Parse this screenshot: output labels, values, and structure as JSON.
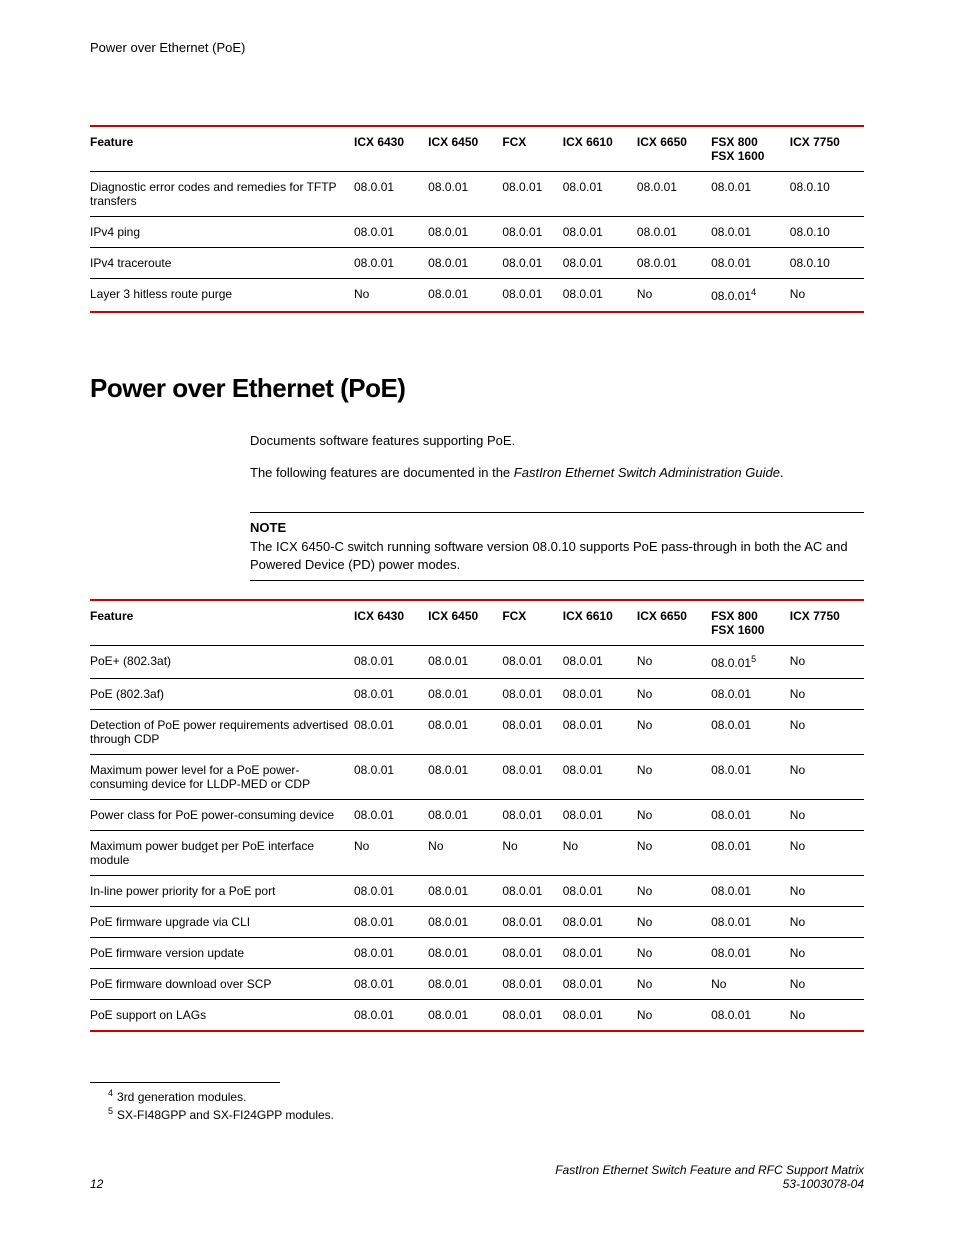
{
  "header": {
    "title": "Power over Ethernet (PoE)"
  },
  "columns": [
    "Feature",
    "ICX 6430",
    "ICX 6450",
    "FCX",
    "ICX 6610",
    "ICX 6650",
    "FSX 800",
    "ICX 7750"
  ],
  "columns_sub": [
    "",
    "",
    "",
    "",
    "",
    "",
    "FSX 1600",
    ""
  ],
  "table1": {
    "rows": [
      [
        "Diagnostic error codes and remedies for TFTP transfers",
        "08.0.01",
        "08.0.01",
        "08.0.01",
        "08.0.01",
        "08.0.01",
        "08.0.01",
        "08.0.10"
      ],
      [
        "IPv4 ping",
        "08.0.01",
        "08.0.01",
        "08.0.01",
        "08.0.01",
        "08.0.01",
        "08.0.01",
        "08.0.10"
      ],
      [
        "IPv4 traceroute",
        "08.0.01",
        "08.0.01",
        "08.0.01",
        "08.0.01",
        "08.0.01",
        "08.0.01",
        "08.0.10"
      ],
      [
        "Layer 3 hitless route purge",
        "No",
        "08.0.01",
        "08.0.01",
        "08.0.01",
        "No",
        "08.0.01",
        "No"
      ]
    ],
    "fn_cell": {
      "row": 3,
      "col": 6,
      "sup": "4"
    }
  },
  "section_heading": "Power over Ethernet (PoE)",
  "para1": "Documents software features supporting PoE.",
  "para2_pre": "The following features are documented in the ",
  "para2_em": "FastIron Ethernet Switch Administration Guide",
  "para2_post": ".",
  "note_label": "NOTE",
  "note_text": "The ICX 6450-C switch running software version 08.0.10 supports PoE pass-through in both the AC and Powered Device (PD) power modes.",
  "table2": {
    "rows": [
      [
        "PoE+ (802.3at)",
        "08.0.01",
        "08.0.01",
        "08.0.01",
        "08.0.01",
        "No",
        "08.0.01",
        "No"
      ],
      [
        "PoE (802.3af)",
        "08.0.01",
        "08.0.01",
        "08.0.01",
        "08.0.01",
        "No",
        "08.0.01",
        "No"
      ],
      [
        "Detection of PoE power requirements advertised through CDP",
        "08.0.01",
        "08.0.01",
        "08.0.01",
        "08.0.01",
        "No",
        "08.0.01",
        "No"
      ],
      [
        "Maximum power level for a PoE power-consuming device for LLDP-MED or CDP",
        "08.0.01",
        "08.0.01",
        "08.0.01",
        "08.0.01",
        "No",
        "08.0.01",
        "No"
      ],
      [
        "Power class for PoE power-consuming device",
        "08.0.01",
        "08.0.01",
        "08.0.01",
        "08.0.01",
        "No",
        "08.0.01",
        "No"
      ],
      [
        "Maximum power budget per PoE interface module",
        "No",
        "No",
        "No",
        "No",
        "No",
        "08.0.01",
        "No"
      ],
      [
        "In-line power priority for a PoE port",
        "08.0.01",
        "08.0.01",
        "08.0.01",
        "08.0.01",
        "No",
        "08.0.01",
        "No"
      ],
      [
        "PoE firmware upgrade via CLI",
        "08.0.01",
        "08.0.01",
        "08.0.01",
        "08.0.01",
        "No",
        "08.0.01",
        "No"
      ],
      [
        "PoE firmware version update",
        "08.0.01",
        "08.0.01",
        "08.0.01",
        "08.0.01",
        "No",
        "08.0.01",
        "No"
      ],
      [
        "PoE firmware download over SCP",
        "08.0.01",
        "08.0.01",
        "08.0.01",
        "08.0.01",
        "No",
        "No",
        "No"
      ],
      [
        "PoE support on LAGs",
        "08.0.01",
        "08.0.01",
        "08.0.01",
        "08.0.01",
        "No",
        "08.0.01",
        "No"
      ]
    ],
    "fn_cell": {
      "row": 0,
      "col": 6,
      "sup": "5"
    }
  },
  "footnotes": [
    {
      "num": "4",
      "text": "3rd generation modules."
    },
    {
      "num": "5",
      "text": "SX-FI48GPP and SX-FI24GPP modules."
    }
  ],
  "footer": {
    "page_num": "12",
    "doc_title": "FastIron Ethernet Switch Feature and RFC Support Matrix",
    "doc_id": "53-1003078-04"
  },
  "style": {
    "accent_color": "#cc0000",
    "body_font_size": 13,
    "table_font_size": 12,
    "heading_font_size": 26
  }
}
